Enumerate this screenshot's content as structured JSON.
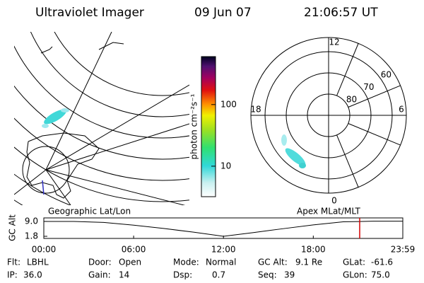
{
  "header": {
    "title": "Ultraviolet Imager",
    "date": "09 Jun 07",
    "time": "21:06:57 UT"
  },
  "colorbar": {
    "label": "photon cm⁻²s⁻¹",
    "scale": "log",
    "lim": [
      3.2,
      600
    ],
    "ticks": [
      10,
      100
    ]
  },
  "polar_map": {
    "lat_labels": [
      80,
      70,
      60
    ],
    "mlt_labels": [
      12,
      18,
      6,
      0
    ]
  },
  "chart_data": {
    "type": "line",
    "y_label": "GC Alt",
    "left_title": "Geographic Lat/Lon",
    "right_title": "Apex MLat/MLT",
    "x": [
      0,
      2,
      4,
      6,
      8,
      10,
      12,
      14,
      16,
      18,
      20,
      22,
      24
    ],
    "series": [
      {
        "name": "GC Alt",
        "color": "#000000",
        "values": [
          9.0,
          9.0,
          8.5,
          7.2,
          5.6,
          3.8,
          1.8,
          3.6,
          5.5,
          7.3,
          8.8,
          9.1,
          9.1
        ]
      }
    ],
    "marker_x": 21.1,
    "marker_color": "#d40000",
    "xlim": [
      0,
      23.98
    ],
    "xticks": [
      {
        "value": 0,
        "label": "00:00"
      },
      {
        "value": 6,
        "label": "06:00"
      },
      {
        "value": 12,
        "label": "12:00"
      },
      {
        "value": 18,
        "label": "18:00"
      },
      {
        "value": 23.98,
        "label": "23:59"
      }
    ],
    "ylim": [
      0.77,
      10.7
    ],
    "yticks": [
      {
        "value": 9.0,
        "label": "9.0"
      },
      {
        "value": 1.8,
        "label": "1.8"
      }
    ]
  },
  "footer": {
    "rows": [
      [
        {
          "label": "Flt:",
          "value": "LBHL"
        },
        {
          "label": "Door:",
          "value": "Open"
        },
        {
          "label": "Mode:",
          "value": "Normal"
        },
        {
          "label": "GC Alt:",
          "value": "9.1 Re"
        },
        {
          "label": "GLat:",
          "value": "-61.6"
        }
      ],
      [
        {
          "label": "IP:",
          "value": "36.0"
        },
        {
          "label": "Gain:",
          "value": "14"
        },
        {
          "label": "Dsp:",
          "value": "0.7"
        },
        {
          "label": "Seq:",
          "value": "39"
        },
        {
          "label": "GLon:",
          "value": "75.0"
        }
      ]
    ]
  }
}
